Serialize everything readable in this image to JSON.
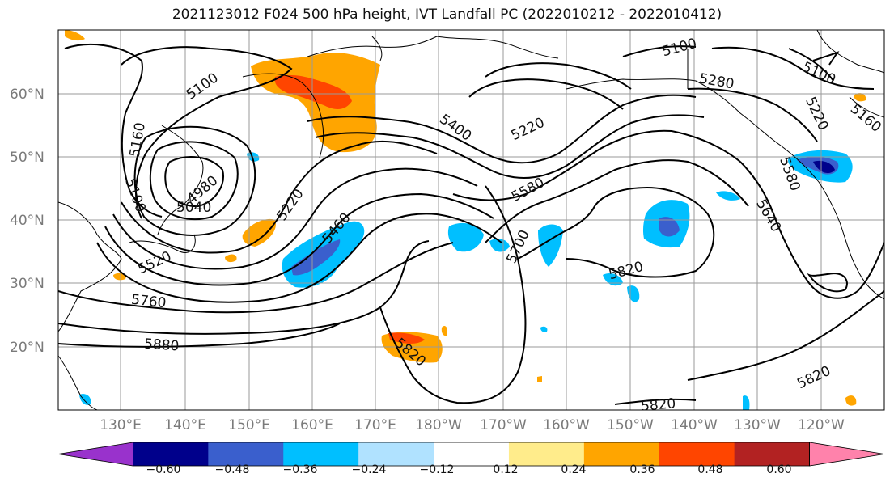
{
  "title": "2021123012 F024 500 hPa height, IVT Landfall PC (2022010212 - 2022010412)",
  "latitude_labels": [
    "60°N",
    "50°N",
    "40°N",
    "30°N",
    "20°N"
  ],
  "longitude_labels": [
    "130°E",
    "140°E",
    "150°E",
    "160°E",
    "170°E",
    "180°W",
    "170°W",
    "160°W",
    "150°W",
    "140°W",
    "130°W",
    "120°W"
  ],
  "contour_labels": [
    "5100",
    "5160",
    "5100",
    "4980",
    "5040",
    "5220",
    "5460",
    "5400",
    "5580",
    "5220",
    "5100",
    "5280",
    "5100",
    "5220",
    "5160",
    "5700",
    "5820",
    "5640",
    "5820",
    "5760",
    "5880",
    "5820",
    "5820",
    "5820",
    "5520",
    "5580"
  ],
  "colorbar": {
    "tick_labels": [
      "−0.60",
      "−0.48",
      "−0.36",
      "−0.24",
      "−0.12",
      "0.12",
      "0.24",
      "0.36",
      "0.48",
      "0.60"
    ],
    "colors": [
      "#9932cc",
      "#00008b",
      "#3a5fcd",
      "#00bfff",
      "#b0e2ff",
      "#ffffff",
      "#ffec8b",
      "#ffa500",
      "#ff4500",
      "#b22222",
      "#ff82ab"
    ]
  }
}
